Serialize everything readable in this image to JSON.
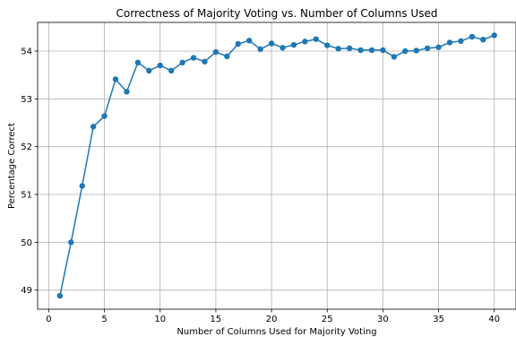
{
  "chart_data": {
    "type": "line",
    "title": "Correctness of Majority Voting vs. Number of Columns Used",
    "xlabel": "Number of Columns Used for Majority Voting",
    "ylabel": "Percentage Correct",
    "xlim": [
      -1,
      41.95
    ],
    "ylim": [
      48.6,
      54.6
    ],
    "xticks": [
      0,
      5,
      10,
      15,
      20,
      25,
      30,
      35,
      40
    ],
    "yticks": [
      49,
      50,
      51,
      52,
      53,
      54
    ],
    "grid": true,
    "color": "#1f77b4",
    "series": [
      {
        "x": [
          1,
          2,
          3,
          4,
          5,
          6,
          7,
          8,
          9,
          10,
          11,
          12,
          13,
          14,
          15,
          16,
          17,
          18,
          19,
          20,
          21,
          22,
          23,
          24,
          25,
          26,
          27,
          28,
          29,
          30,
          31,
          32,
          33,
          34,
          35,
          36,
          37,
          38,
          39,
          40
        ],
        "y": [
          48.88,
          50.0,
          51.18,
          52.42,
          52.64,
          53.41,
          53.15,
          53.76,
          53.59,
          53.7,
          53.59,
          53.76,
          53.86,
          53.78,
          53.98,
          53.89,
          54.15,
          54.22,
          54.04,
          54.16,
          54.07,
          54.13,
          54.2,
          54.25,
          54.12,
          54.05,
          54.06,
          54.02,
          54.02,
          54.02,
          53.88,
          54.0,
          54.01,
          54.06,
          54.08,
          54.18,
          54.21,
          54.3,
          54.24,
          54.33
        ]
      }
    ]
  }
}
